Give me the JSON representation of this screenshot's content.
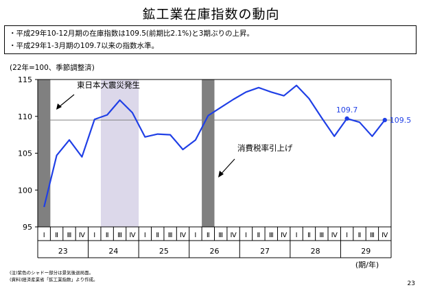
{
  "title": "鉱工業在庫指数の動向",
  "summary": [
    "・平成29年10-12月期の在庫指数は109.5(前期比2.1%)と3期ぶりの上昇。",
    "・平成29年1-3月期の109.7以来の指数水準。"
  ],
  "notes": [
    "(注)紫色のシャドー部分は景気後退局面。",
    "(資料)経済産業省「鉱工業指数」より作成。"
  ],
  "page_number": "23",
  "chart_data": {
    "type": "line",
    "unit_label": "(22年=100、季節調整済)",
    "ylim": [
      95,
      115
    ],
    "yticks": [
      95,
      100,
      105,
      110,
      115
    ],
    "quarters": [
      "Ⅰ",
      "Ⅱ",
      "Ⅲ",
      "Ⅳ",
      "Ⅰ",
      "Ⅱ",
      "Ⅲ",
      "Ⅳ",
      "Ⅰ",
      "Ⅱ",
      "Ⅲ",
      "Ⅳ",
      "Ⅰ",
      "Ⅱ",
      "Ⅲ",
      "Ⅳ",
      "Ⅰ",
      "Ⅱ",
      "Ⅲ",
      "Ⅳ",
      "Ⅰ",
      "Ⅱ",
      "Ⅲ",
      "Ⅳ",
      "Ⅰ",
      "Ⅱ",
      "Ⅲ",
      "Ⅳ"
    ],
    "years": [
      "23",
      "24",
      "25",
      "26",
      "27",
      "28",
      "29"
    ],
    "x_axis_label": "(期/年)",
    "values": [
      97.7,
      104.7,
      106.8,
      104.5,
      109.6,
      110.2,
      112.2,
      110.5,
      107.2,
      107.6,
      107.5,
      105.5,
      106.8,
      110.1,
      111.2,
      112.3,
      113.3,
      113.9,
      113.3,
      112.8,
      114.2,
      112.4,
      109.8,
      107.3,
      109.7,
      109.2,
      107.3,
      109.5
    ],
    "reference_line": 109.5,
    "shaded_quarters": [
      {
        "index": 0,
        "kind": "event"
      },
      {
        "index": 13,
        "kind": "event"
      }
    ],
    "recession_band": {
      "start": 5,
      "end": 7
    },
    "annotations": [
      {
        "text": "東日本大震災発生",
        "at": 0
      },
      {
        "text": "消費税率引上げ",
        "at": 13
      }
    ],
    "point_labels": [
      {
        "index": 24,
        "text": "109.7"
      },
      {
        "index": 27,
        "text": "109.5"
      }
    ],
    "colors": {
      "line": "#1f3fe6",
      "event_bar": "#808080",
      "recession": "#dcd8ea",
      "reference": "#808080",
      "label": "#1f3fe6"
    }
  }
}
